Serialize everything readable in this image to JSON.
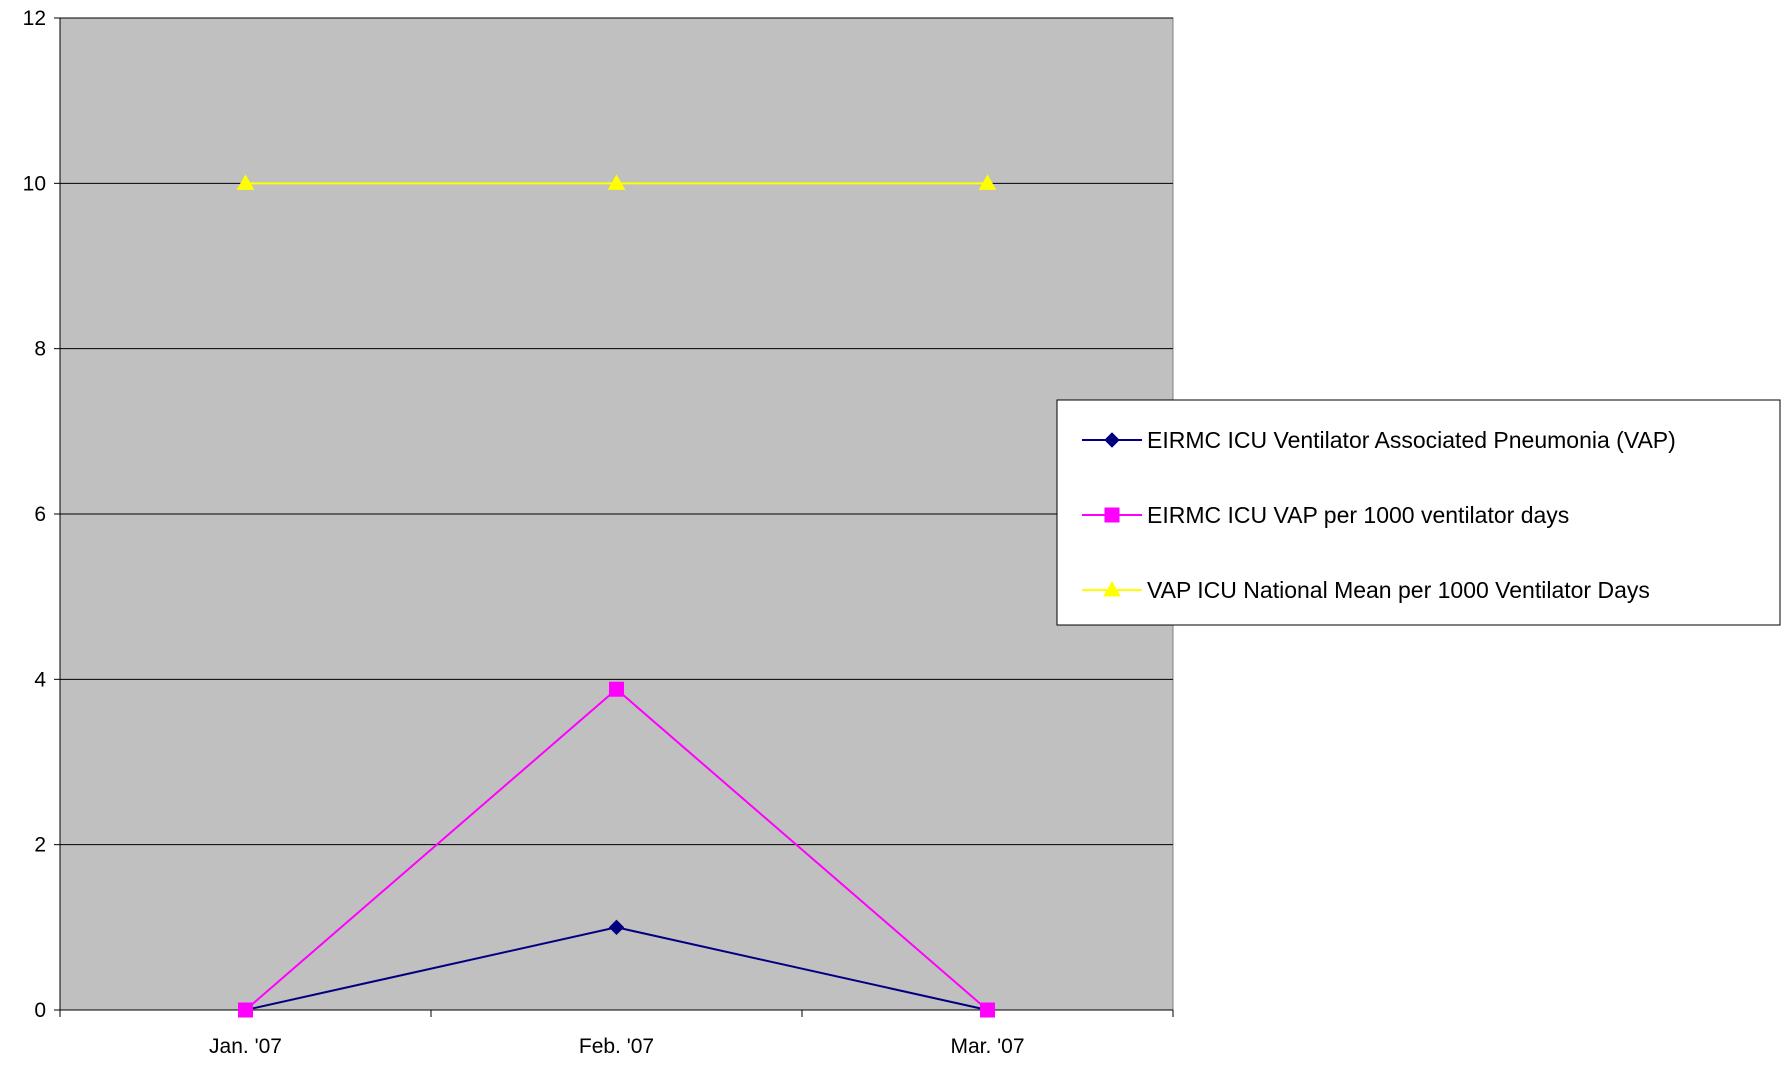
{
  "chart_data": {
    "type": "line",
    "title": "",
    "xlabel": "",
    "ylabel": "",
    "categories": [
      "Jan. '07",
      "Feb. '07",
      "Mar. '07"
    ],
    "ylim": [
      0,
      12
    ],
    "yticks": [
      0,
      2,
      4,
      6,
      8,
      10,
      12
    ],
    "grid": true,
    "legend_position": "right",
    "plot_background": "#C0C0C0",
    "series": [
      {
        "name": "EIRMC ICU Ventilator Associated Pneumonia (VAP)",
        "values": [
          0,
          1,
          0
        ],
        "color": "#000080",
        "marker": "diamond"
      },
      {
        "name": "EIRMC ICU VAP per 1000 ventilator days",
        "values": [
          0,
          3.88,
          0
        ],
        "color": "#FF00FF",
        "marker": "square"
      },
      {
        "name": "VAP ICU National Mean per 1000 Ventilator Days",
        "values": [
          10,
          10,
          10
        ],
        "color": "#FFFF00",
        "marker": "triangle"
      }
    ]
  }
}
